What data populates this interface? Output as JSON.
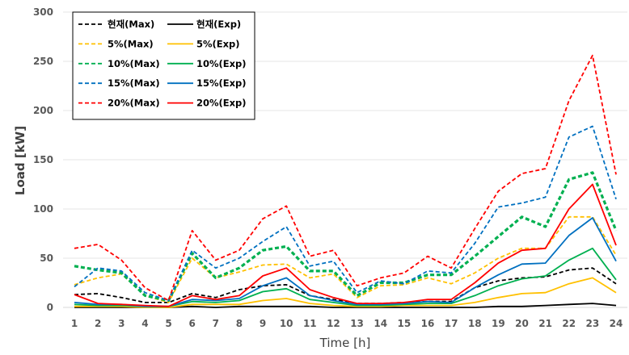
{
  "chart_data": {
    "type": "line",
    "xlabel": "Time [h]",
    "ylabel": "Load [kW]",
    "ylim": [
      0,
      300
    ],
    "yticks": [
      0,
      50,
      100,
      150,
      200,
      250,
      300
    ],
    "x": [
      1,
      2,
      3,
      4,
      5,
      6,
      7,
      8,
      9,
      10,
      11,
      12,
      13,
      14,
      15,
      16,
      17,
      18,
      19,
      20,
      21,
      22,
      23,
      24
    ],
    "x_tick_labels": [
      "1",
      "2",
      "3",
      "4",
      "5",
      "6",
      "7",
      "8",
      "9",
      "10",
      "11",
      "12",
      "13",
      "14",
      "15",
      "16",
      "17",
      "18",
      "19",
      "20",
      "21",
      "22",
      "23",
      "24"
    ],
    "legend_position": "top-left",
    "series": [
      {
        "name": "현재(Max)",
        "color": "#000000",
        "dash": "dashed",
        "values": [
          13,
          14,
          10,
          5,
          5,
          14,
          10,
          18,
          22,
          23,
          12,
          8,
          4,
          4,
          5,
          6,
          6,
          20,
          27,
          30,
          31,
          38,
          40,
          24
        ]
      },
      {
        "name": "현재(Exp)",
        "color": "#000000",
        "dash": "solid",
        "values": [
          0,
          0,
          0,
          0,
          0,
          1,
          0,
          1,
          1,
          1,
          1,
          0,
          0,
          0,
          0,
          0,
          0,
          0,
          1,
          1,
          2,
          3,
          4,
          2
        ]
      },
      {
        "name": "5%(Max)",
        "color": "#ffc000",
        "dash": "dashed",
        "values": [
          23,
          30,
          34,
          12,
          5,
          50,
          30,
          36,
          43,
          44,
          30,
          34,
          10,
          22,
          23,
          30,
          24,
          35,
          50,
          60,
          60,
          92,
          92,
          53
        ]
      },
      {
        "name": "5%(Exp)",
        "color": "#ffc000",
        "dash": "solid",
        "values": [
          1,
          1,
          1,
          0,
          0,
          3,
          3,
          3,
          7,
          9,
          4,
          2,
          1,
          1,
          2,
          2,
          2,
          5,
          10,
          14,
          15,
          24,
          30,
          15
        ]
      },
      {
        "name": "10%(Max)",
        "color": "#00b050",
        "dash": "dashed",
        "values": [
          42,
          38,
          35,
          12,
          7,
          55,
          30,
          40,
          58,
          62,
          37,
          37,
          12,
          25,
          25,
          33,
          33,
          52,
          72,
          92,
          82,
          130,
          137,
          78
        ]
      },
      {
        "name": "10%(Exp)",
        "color": "#00b050",
        "dash": "solid",
        "values": [
          3,
          2,
          2,
          1,
          1,
          6,
          5,
          7,
          16,
          19,
          8,
          5,
          2,
          2,
          3,
          4,
          4,
          12,
          22,
          29,
          32,
          48,
          60,
          28
        ]
      },
      {
        "name": "15%(Max)",
        "color": "#0070c0",
        "dash": "dashed",
        "values": [
          21,
          40,
          37,
          15,
          7,
          58,
          40,
          50,
          67,
          82,
          42,
          47,
          15,
          27,
          24,
          37,
          35,
          65,
          102,
          106,
          112,
          173,
          184,
          110
        ]
      },
      {
        "name": "15%(Exp)",
        "color": "#0070c0",
        "dash": "solid",
        "values": [
          5,
          3,
          3,
          1,
          1,
          8,
          7,
          9,
          22,
          30,
          12,
          7,
          3,
          3,
          4,
          6,
          5,
          20,
          33,
          44,
          45,
          73,
          91,
          47
        ]
      },
      {
        "name": "20%(Max)",
        "color": "#ff0000",
        "dash": "dashed",
        "values": [
          60,
          64,
          48,
          20,
          7,
          78,
          48,
          58,
          90,
          103,
          52,
          58,
          22,
          30,
          35,
          52,
          40,
          80,
          118,
          136,
          141,
          210,
          256,
          135
        ]
      },
      {
        "name": "20%(Exp)",
        "color": "#ff0000",
        "dash": "solid",
        "values": [
          13,
          4,
          3,
          2,
          1,
          12,
          8,
          12,
          32,
          40,
          18,
          10,
          4,
          4,
          5,
          8,
          8,
          25,
          45,
          58,
          60,
          100,
          125,
          63
        ]
      }
    ]
  }
}
